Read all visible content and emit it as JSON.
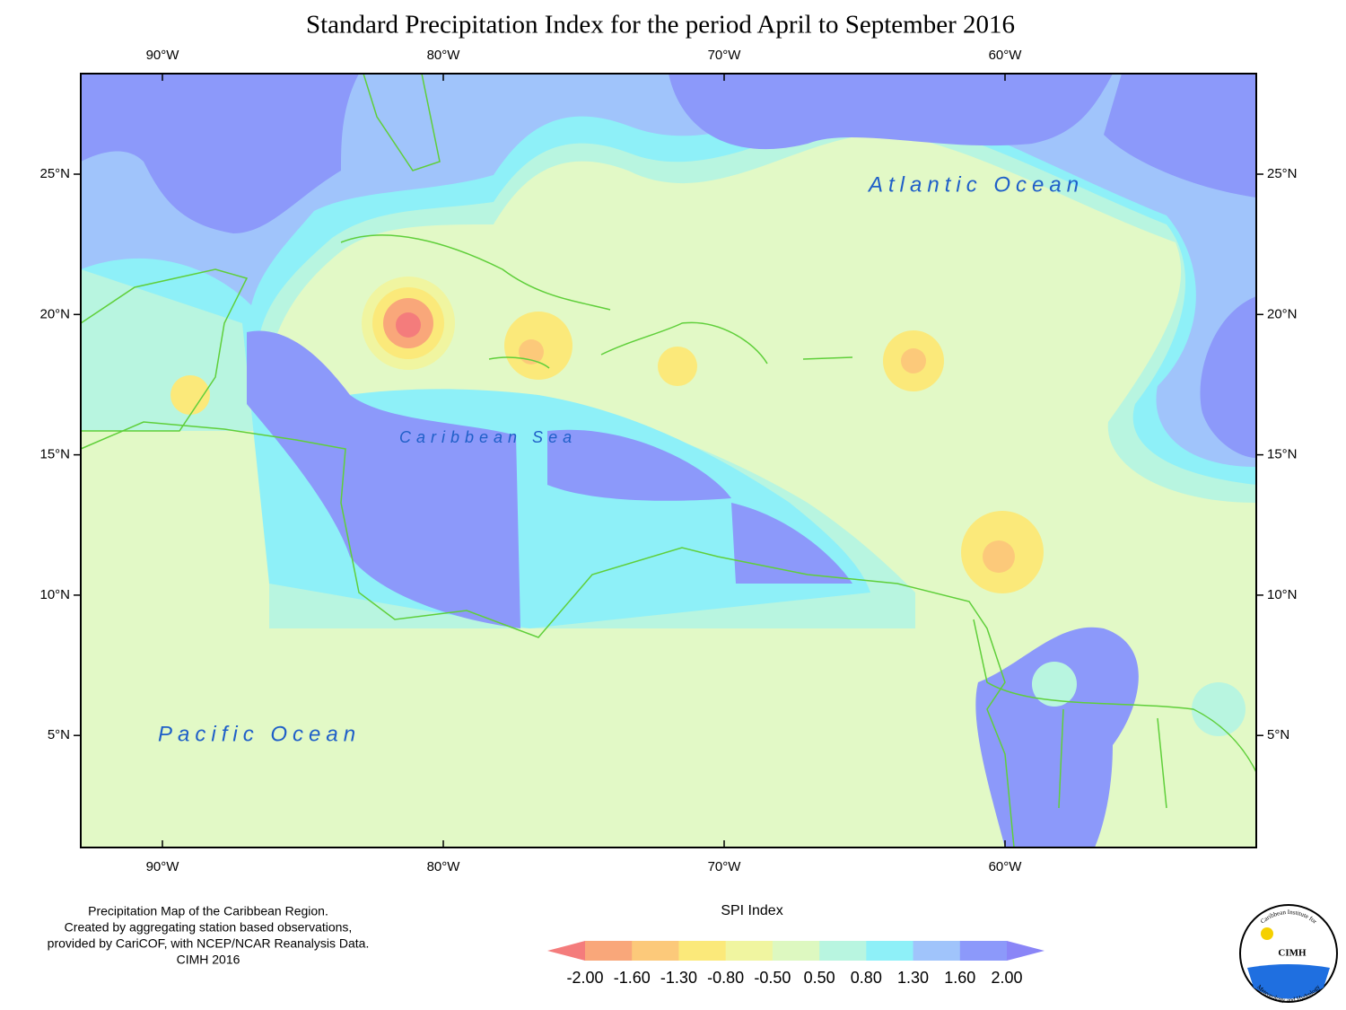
{
  "title": "Standard Precipitation Index for the period April to September 2016",
  "map": {
    "x_labels": [
      "90°W",
      "80°W",
      "70°W",
      "60°W"
    ],
    "y_labels": [
      "25°N",
      "20°N",
      "15°N",
      "10°N",
      "5°N"
    ],
    "ocean_labels": [
      "Atlantic Ocean",
      "Caribbean Sea",
      "Pacific Ocean"
    ]
  },
  "legend": {
    "title": "SPI Index",
    "ticks": [
      "-2.00",
      "-1.60",
      "-1.30",
      "-0.80",
      "-0.50",
      "0.50",
      "0.80",
      "1.30",
      "1.60",
      "2.00"
    ],
    "colors": [
      "#f47c7c",
      "#f9a77a",
      "#fcc97a",
      "#fbe97a",
      "#f0f5a0",
      "#ddf8c0",
      "#b8f5e0",
      "#8ef0f8",
      "#a0c4fb",
      "#8c99fa",
      "#8a85f7"
    ]
  },
  "caption": [
    "Precipitation Map of the Caribbean Region.",
    "Created by aggregating station based observations,",
    "provided by CariCOF, with NCEP/NCAR Reanalysis Data.",
    "CIMH 2016"
  ],
  "logo": {
    "name": "CIMH",
    "ring_top": "Caribbean Institute for",
    "ring_bottom": "Meteorology and Hydrology"
  }
}
